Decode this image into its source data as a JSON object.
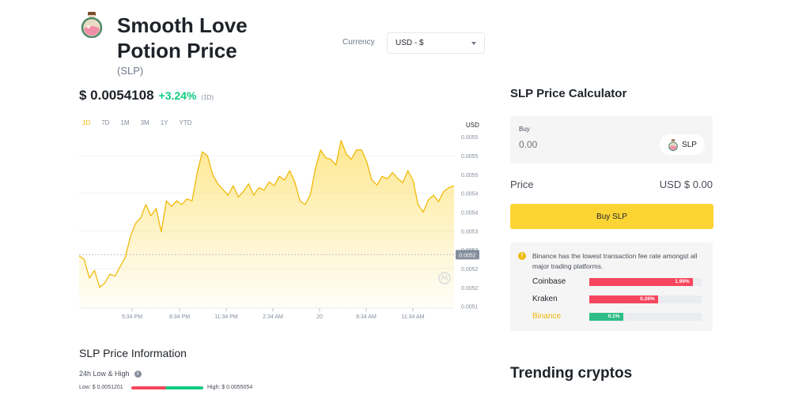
{
  "header": {
    "title": "Smooth Love Potion Price",
    "symbol": "(SLP)",
    "currency_label": "Currency",
    "currency_value": "USD - $"
  },
  "price": {
    "value": "$ 0.0054108",
    "change": "+3.24%",
    "period": "(1D)"
  },
  "ranges": [
    "1D",
    "7D",
    "1M",
    "3M",
    "1Y",
    "YTD"
  ],
  "active_range": "1D",
  "chart_data": {
    "type": "area",
    "unit_label": "USD",
    "ylim": [
      0.005095,
      0.005565
    ],
    "y_ticks": [
      "0.0055",
      "0.0055",
      "0.0055",
      "0.0054",
      "0.0054",
      "0.0053",
      "0.0053",
      "0.0052",
      "0.0052",
      "0.0051"
    ],
    "y_tick_values": [
      0.00555,
      0.0055,
      0.00545,
      0.0054,
      0.00535,
      0.0053,
      0.00525,
      0.0052,
      0.00515,
      0.0051
    ],
    "x_ticks": [
      "5:34 PM",
      "8:34 PM",
      "11:34 PM",
      "2:34 AM",
      "20",
      "8:34 AM",
      "11:34 AM"
    ],
    "x_tick_positions": [
      0.17,
      0.3,
      0.43,
      0.57,
      0.7,
      0.83,
      0.96
    ],
    "current_marker": "0.0052",
    "current_value": 0.005237,
    "values": [
      0.005234,
      0.005224,
      0.005175,
      0.005195,
      0.00515,
      0.005162,
      0.005185,
      0.00518,
      0.005205,
      0.00523,
      0.005285,
      0.00532,
      0.005335,
      0.00537,
      0.00534,
      0.00536,
      0.005298,
      0.00538,
      0.005365,
      0.00538,
      0.00537,
      0.005385,
      0.00538,
      0.005455,
      0.00551,
      0.0055,
      0.00545,
      0.005425,
      0.00541,
      0.005395,
      0.00542,
      0.00539,
      0.005405,
      0.005425,
      0.005395,
      0.005415,
      0.005408,
      0.00543,
      0.00542,
      0.005445,
      0.005435,
      0.00546,
      0.00543,
      0.00538,
      0.00537,
      0.005395,
      0.005465,
      0.005515,
      0.005495,
      0.00549,
      0.005475,
      0.00554,
      0.005505,
      0.00549,
      0.005515,
      0.005515,
      0.005484,
      0.005435,
      0.005422,
      0.005445,
      0.005438,
      0.005455,
      0.00544,
      0.005428,
      0.00546,
      0.005435,
      0.00537,
      0.00535,
      0.005382,
      0.005395,
      0.005378,
      0.005405,
      0.005415,
      0.00542
    ],
    "grid": true
  },
  "info": {
    "title": "SLP Price Information",
    "lowhigh_label": "24h Low & High",
    "low": "Low: $ 0.0051201",
    "high": "High: $ 0.0055054",
    "low_fraction": 0.48
  },
  "calculator": {
    "title": "SLP Price Calculator",
    "buy_label": "Buy",
    "buy_placeholder": "0.00",
    "token": "SLP",
    "price_label": "Price",
    "price_value": "USD $ 0.00",
    "buy_button": "Buy SLP"
  },
  "fees": {
    "note": "Binance has the lowest transaction fee rate amongst all major trading platforms.",
    "rows": [
      {
        "name": "Coinbase",
        "label": "1.99%",
        "fraction": 0.92,
        "color": "#f6465d"
      },
      {
        "name": "Kraken",
        "label": "0.26%",
        "fraction": 0.61,
        "color": "#f6465d"
      },
      {
        "name": "Binance",
        "label": "0.1%",
        "fraction": 0.3,
        "color": "#2ebd85"
      }
    ]
  },
  "trending_title": "Trending cryptos",
  "colors": {
    "accent": "#f0b90b",
    "up": "#0ecb81",
    "down": "#f6465d",
    "button": "#fcd535"
  }
}
